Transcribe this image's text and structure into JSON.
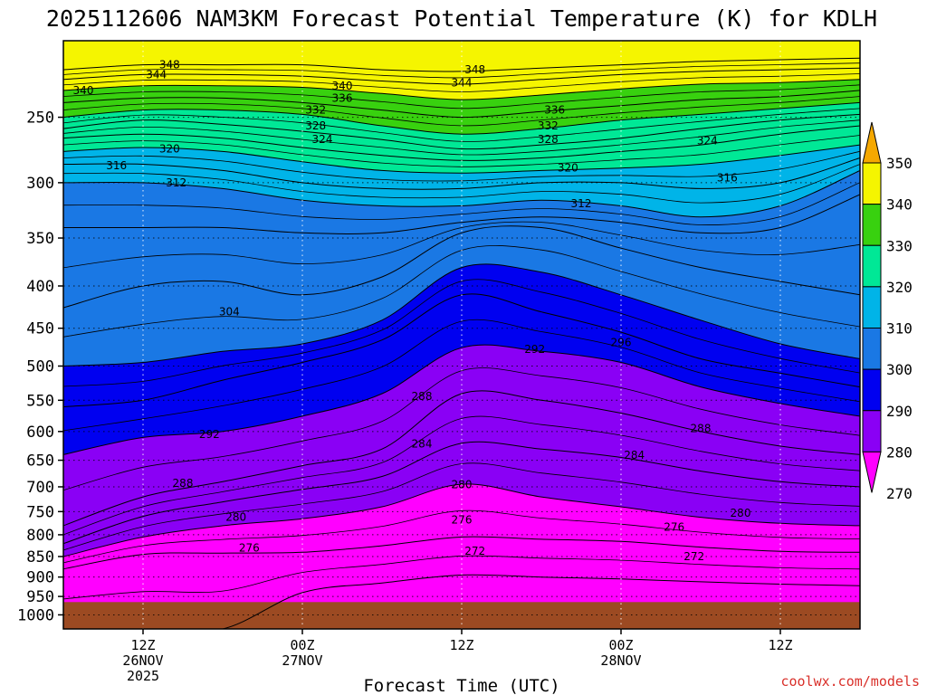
{
  "chart_data": {
    "type": "area",
    "title": "2025112606 NAM3KM Forecast Potential Temperature (K) for KDLH",
    "xlabel": "Forecast Time (UTC)",
    "ylabel": "",
    "y_scale": "pressure (log, inverted)",
    "y_ticks": [
      250,
      300,
      350,
      400,
      450,
      500,
      550,
      600,
      650,
      700,
      750,
      800,
      850,
      900,
      950,
      1000
    ],
    "x_ticks": [
      {
        "hour": 6,
        "label": "12Z",
        "sub1": "26NOV",
        "sub2": "2025"
      },
      {
        "hour": 18,
        "label": "00Z",
        "sub1": "27NOV",
        "sub2": ""
      },
      {
        "hour": 30,
        "label": "12Z",
        "sub1": "",
        "sub2": ""
      },
      {
        "hour": 42,
        "label": "00Z",
        "sub1": "28NOV",
        "sub2": ""
      },
      {
        "hour": 54,
        "label": "12Z",
        "sub1": "",
        "sub2": ""
      }
    ],
    "x_hour_range": [
      0,
      60
    ],
    "grid": "dotted",
    "colorbar": {
      "labels": [
        350,
        340,
        330,
        320,
        310,
        300,
        290,
        280,
        270
      ],
      "bands": [
        {
          "min": 350,
          "color": "#f5a800"
        },
        {
          "min": 340,
          "color": "#f5f500"
        },
        {
          "min": 330,
          "color": "#38d10f"
        },
        {
          "min": 320,
          "color": "#00e896"
        },
        {
          "min": 310,
          "color": "#00b4e8"
        },
        {
          "min": 300,
          "color": "#1a78e4"
        },
        {
          "min": 290,
          "color": "#0000f0"
        },
        {
          "min": 280,
          "color": "#8a00f5"
        },
        {
          "min": 270,
          "color": "#ff00ff"
        }
      ],
      "below_color": "#ff00ff"
    },
    "ground_color": "#9c4a22",
    "anchor_times": [
      0,
      6,
      12,
      18,
      24,
      30,
      36,
      42,
      48,
      54,
      60
    ],
    "isentropes": [
      {
        "theta": 272,
        "pressure_hPa": [
          null,
          null,
          null,
          940,
          915,
          895,
          900,
          905,
          912,
          918,
          922
        ]
      },
      {
        "theta": 276,
        "pressure_hPa": [
          880,
          845,
          842,
          840,
          825,
          805,
          810,
          815,
          828,
          838,
          840
        ]
      },
      {
        "theta": 280,
        "pressure_hPa": [
          850,
          805,
          780,
          765,
          740,
          695,
          720,
          740,
          762,
          775,
          780
        ]
      },
      {
        "theta": 284,
        "pressure_hPa": [
          820,
          760,
          730,
          705,
          680,
          620,
          630,
          645,
          670,
          690,
          700
        ]
      },
      {
        "theta": 288,
        "pressure_hPa": [
          780,
          720,
          690,
          660,
          630,
          540,
          550,
          570,
          600,
          625,
          640
        ]
      },
      {
        "theta": 292,
        "pressure_hPa": [
          640,
          610,
          600,
          575,
          540,
          475,
          480,
          495,
          530,
          555,
          575
        ]
      },
      {
        "theta": 296,
        "pressure_hPa": [
          560,
          550,
          520,
          495,
          465,
          410,
          430,
          455,
          490,
          510,
          530
        ]
      },
      {
        "theta": 300,
        "pressure_hPa": [
          500,
          495,
          480,
          470,
          440,
          380,
          385,
          410,
          440,
          470,
          490
        ]
      },
      {
        "theta": 304,
        "pressure_hPa": [
          425,
          400,
          395,
          410,
          390,
          345,
          340,
          360,
          380,
          395,
          410
        ]
      },
      {
        "theta": 308,
        "pressure_hPa": [
          340,
          340,
          340,
          345,
          345,
          335,
          330,
          335,
          345,
          340,
          310
        ]
      },
      {
        "theta": 312,
        "pressure_hPa": [
          300,
          300,
          305,
          315,
          320,
          320,
          315,
          320,
          330,
          320,
          290
        ]
      },
      {
        "theta": 316,
        "pressure_hPa": [
          285,
          285,
          290,
          300,
          305,
          305,
          300,
          300,
          305,
          300,
          280
        ]
      },
      {
        "theta": 320,
        "pressure_hPa": [
          275,
          272,
          275,
          283,
          290,
          292,
          290,
          288,
          285,
          278,
          270
        ]
      },
      {
        "theta": 324,
        "pressure_hPa": [
          265,
          262,
          265,
          272,
          278,
          282,
          280,
          275,
          270,
          262,
          256
        ]
      },
      {
        "theta": 328,
        "pressure_hPa": [
          258,
          252,
          255,
          260,
          266,
          273,
          270,
          265,
          258,
          252,
          248
        ]
      },
      {
        "theta": 332,
        "pressure_hPa": [
          250,
          245,
          245,
          248,
          256,
          262,
          258,
          252,
          248,
          244,
          240
        ]
      },
      {
        "theta": 336,
        "pressure_hPa": [
          240,
          237,
          237,
          240,
          245,
          250,
          246,
          242,
          238,
          236,
          232
        ]
      },
      {
        "theta": 340,
        "pressure_hPa": [
          232,
          229,
          229,
          230,
          234,
          238,
          235,
          231,
          228,
          227,
          225
        ]
      },
      {
        "theta": 344,
        "pressure_hPa": [
          225,
          222,
          222,
          223,
          226,
          228,
          225,
          222,
          220,
          219,
          218
        ]
      },
      {
        "theta": 348,
        "pressure_hPa": [
          219,
          216,
          216,
          216,
          219,
          220,
          218,
          216,
          214,
          213,
          212
        ]
      }
    ],
    "contour_labels": [
      {
        "text": "348",
        "hour": 8,
        "pressure_hPa": 216
      },
      {
        "text": "344",
        "hour": 7,
        "pressure_hPa": 222
      },
      {
        "text": "340",
        "hour": 1.5,
        "pressure_hPa": 232
      },
      {
        "text": "340",
        "hour": 21,
        "pressure_hPa": 229
      },
      {
        "text": "336",
        "hour": 21,
        "pressure_hPa": 237
      },
      {
        "text": "332",
        "hour": 19,
        "pressure_hPa": 245
      },
      {
        "text": "328",
        "hour": 19,
        "pressure_hPa": 256
      },
      {
        "text": "324",
        "hour": 19.5,
        "pressure_hPa": 266
      },
      {
        "text": "320",
        "hour": 8,
        "pressure_hPa": 273
      },
      {
        "text": "316",
        "hour": 4,
        "pressure_hPa": 286
      },
      {
        "text": "312",
        "hour": 8.5,
        "pressure_hPa": 300
      },
      {
        "text": "348",
        "hour": 31,
        "pressure_hPa": 219
      },
      {
        "text": "344",
        "hour": 30,
        "pressure_hPa": 227
      },
      {
        "text": "336",
        "hour": 37,
        "pressure_hPa": 245
      },
      {
        "text": "332",
        "hour": 36.5,
        "pressure_hPa": 256
      },
      {
        "text": "328",
        "hour": 36.5,
        "pressure_hPa": 266
      },
      {
        "text": "324",
        "hour": 48.5,
        "pressure_hPa": 267
      },
      {
        "text": "320",
        "hour": 38,
        "pressure_hPa": 288
      },
      {
        "text": "316",
        "hour": 50,
        "pressure_hPa": 296
      },
      {
        "text": "312",
        "hour": 39,
        "pressure_hPa": 318
      },
      {
        "text": "304",
        "hour": 12.5,
        "pressure_hPa": 430
      },
      {
        "text": "296",
        "hour": 42,
        "pressure_hPa": 468
      },
      {
        "text": "292",
        "hour": 35.5,
        "pressure_hPa": 477
      },
      {
        "text": "292",
        "hour": 11,
        "pressure_hPa": 605
      },
      {
        "text": "288",
        "hour": 27,
        "pressure_hPa": 544
      },
      {
        "text": "288",
        "hour": 48,
        "pressure_hPa": 595
      },
      {
        "text": "288",
        "hour": 9,
        "pressure_hPa": 693
      },
      {
        "text": "284",
        "hour": 27,
        "pressure_hPa": 621
      },
      {
        "text": "284",
        "hour": 43,
        "pressure_hPa": 641
      },
      {
        "text": "280",
        "hour": 30,
        "pressure_hPa": 696
      },
      {
        "text": "280",
        "hour": 51,
        "pressure_hPa": 753
      },
      {
        "text": "280",
        "hour": 13,
        "pressure_hPa": 762
      },
      {
        "text": "276",
        "hour": 30,
        "pressure_hPa": 768
      },
      {
        "text": "276",
        "hour": 46,
        "pressure_hPa": 783
      },
      {
        "text": "276",
        "hour": 14,
        "pressure_hPa": 830
      },
      {
        "text": "272",
        "hour": 31,
        "pressure_hPa": 837
      },
      {
        "text": "272",
        "hour": 47.5,
        "pressure_hPa": 850
      }
    ]
  },
  "credit": "coolwx.com/models"
}
